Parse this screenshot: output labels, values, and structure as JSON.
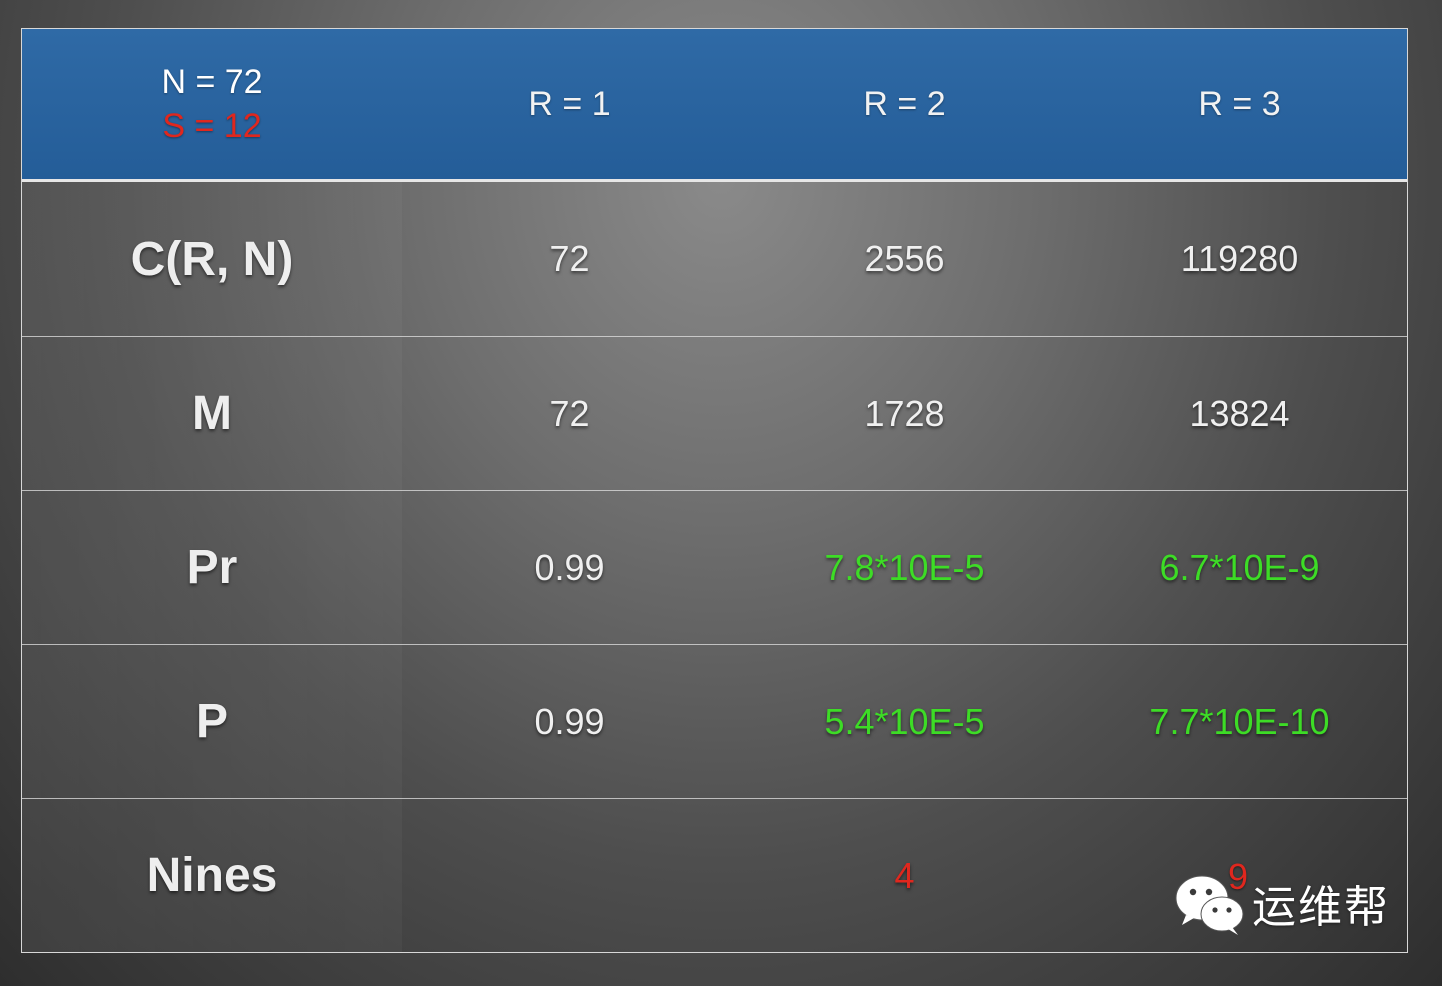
{
  "table": {
    "header": {
      "corner_n": "N = 72",
      "corner_s": "S = 12",
      "columns": [
        "R = 1",
        "R = 2",
        "R = 3"
      ]
    },
    "rows": [
      {
        "label": "C(R, N)",
        "values": [
          "72",
          "2556",
          "119280"
        ]
      },
      {
        "label": "M",
        "values": [
          "72",
          "1728",
          "13824"
        ]
      },
      {
        "label": "Pr",
        "values": [
          "0.99",
          "7.8*10E-5",
          "6.7*10E-9"
        ]
      },
      {
        "label": "P",
        "values": [
          "0.99",
          "5.4*10E-5",
          "7.7*10E-10"
        ]
      },
      {
        "label": "Nines",
        "values": [
          "",
          "4",
          "9"
        ]
      }
    ]
  },
  "colors": {
    "header_blue": "#2a63a0",
    "highlight_green": "#3ddc26",
    "highlight_red": "#e0271e"
  },
  "watermark": {
    "text": "运维帮",
    "icon": "wechat-icon"
  }
}
